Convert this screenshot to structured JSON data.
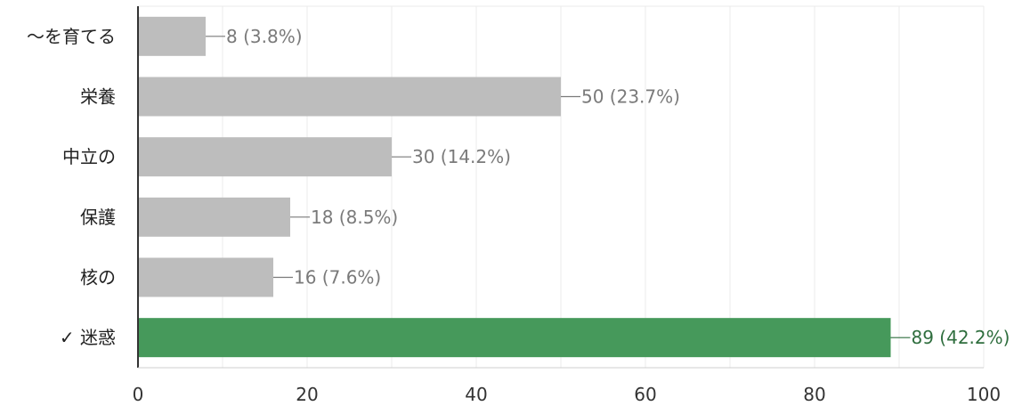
{
  "chart_data": {
    "type": "bar",
    "orientation": "horizontal",
    "categories": [
      "～を育てる",
      "栄養",
      "中立の",
      "保護",
      "核の",
      "迷惑"
    ],
    "values": [
      8,
      50,
      30,
      18,
      16,
      89
    ],
    "data_labels": [
      "8 (3.8%)",
      "50 (23.7%)",
      "30 (14.2%)",
      "18 (8.5%)",
      "16 (7.6%)",
      "89 (42.2%)"
    ],
    "correct_index": 5,
    "correct_marker": "✓",
    "xlim": [
      0,
      100
    ],
    "xticks": [
      0,
      20,
      40,
      60,
      80,
      100
    ],
    "grid": true,
    "colors": {
      "bar": "#bdbdbd",
      "bar_correct": "#46995b",
      "label": "#7a7a7a",
      "label_correct": "#2f6e3e",
      "grid": "#ebebeb",
      "axis": "#333333"
    }
  }
}
